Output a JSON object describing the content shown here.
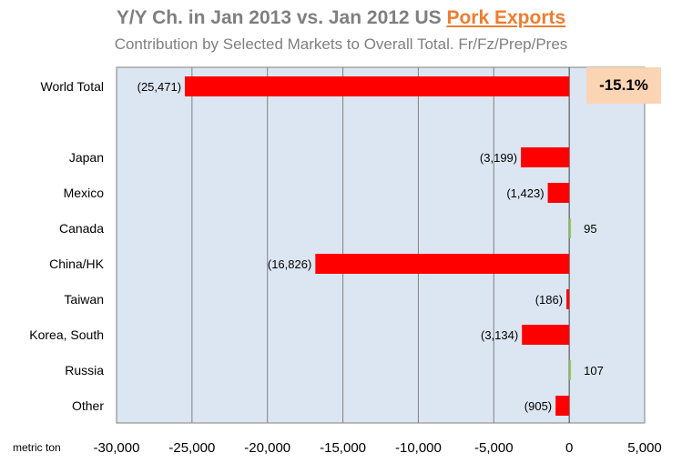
{
  "chart_data": {
    "type": "bar",
    "orientation": "horizontal",
    "title_prefix": "Y/Y Ch. in Jan 2013 vs. Jan 2012 US ",
    "title_highlight": "Pork Exports",
    "subtitle": "Contribution by Selected Markets to Overall Total. Fr/Fz/Prep/Pres",
    "categories": [
      "World Total",
      "Japan",
      "Mexico",
      "Canada",
      "China/HK",
      "Taiwan",
      "Korea, South",
      "Russia",
      "Other"
    ],
    "values": [
      -25471,
      -3199,
      -1423,
      95,
      -16826,
      -186,
      -3134,
      107,
      -905
    ],
    "data_labels": [
      "(25,471)",
      "(3,199)",
      "(1,423)",
      "95",
      "(16,826)",
      "(186)",
      "(3,134)",
      "107",
      "(905)"
    ],
    "xlim": [
      -30000,
      5000
    ],
    "x_ticks": [
      -30000,
      -25000,
      -20000,
      -15000,
      -10000,
      -5000,
      0,
      5000
    ],
    "x_tick_labels": [
      "-30,000",
      "-25,000",
      "-20,000",
      "-15,000",
      "-10,000",
      "-5,000",
      "0",
      "5,000"
    ],
    "xlabel": "metric ton",
    "grid": true,
    "callout": "-15.1%",
    "colors": {
      "negative": "#ff0000",
      "positive": "#92d050",
      "plot_background": "#dce6f2",
      "gridline": "#808080",
      "callout_bg": "#fbd4b4",
      "title": "#7f7f7f",
      "title_highlight": "#ed7d31"
    }
  }
}
